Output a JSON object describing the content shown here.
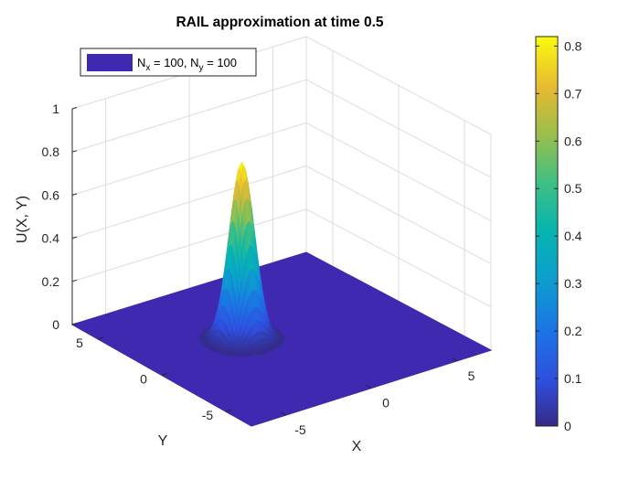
{
  "chart_data": {
    "type": "surface",
    "title": "RAIL approximation at time 0.5",
    "xlabel": "X",
    "ylabel": "Y",
    "zlabel": "U(X, Y)",
    "xlim": [
      -7,
      7
    ],
    "ylim": [
      -7,
      7
    ],
    "zlim": [
      0,
      1
    ],
    "xticks": [
      -5,
      0,
      5
    ],
    "yticks": [
      -5,
      0,
      5
    ],
    "zticks": [
      0,
      0.2,
      0.4,
      0.6,
      0.8,
      1
    ],
    "xticklabels": [
      "-5",
      "0",
      "5"
    ],
    "yticklabels": [
      "-5",
      "0",
      "5"
    ],
    "zticklabels": [
      "0",
      "0.2",
      "0.4",
      "0.6",
      "0.8",
      "1"
    ],
    "grid": true,
    "legend": {
      "location": "top-left",
      "entries": [
        {
          "prefix_1": "N",
          "sub_1": "x",
          "mid": " = 100, N",
          "sub_2": "y",
          "suffix": " = 100"
        }
      ]
    },
    "series": [
      {
        "kind": "gaussian-peak",
        "peak_x": -1.5,
        "peak_y": 1.0,
        "peak_value": 0.82,
        "spread": 0.6
      }
    ],
    "colorbar": {
      "location": "right",
      "limits": [
        0,
        0.82
      ],
      "ticks": [
        0,
        0.1,
        0.2,
        0.3,
        0.4,
        0.5,
        0.6,
        0.7,
        0.8
      ],
      "ticklabels": [
        "0",
        "0.1",
        "0.2",
        "0.3",
        "0.4",
        "0.5",
        "0.6",
        "0.7",
        "0.8"
      ],
      "colormap": "parula"
    },
    "colors": {
      "surface_floor": "#3e29b0",
      "axis": "#262626",
      "grid": "#dcdcdc"
    }
  }
}
